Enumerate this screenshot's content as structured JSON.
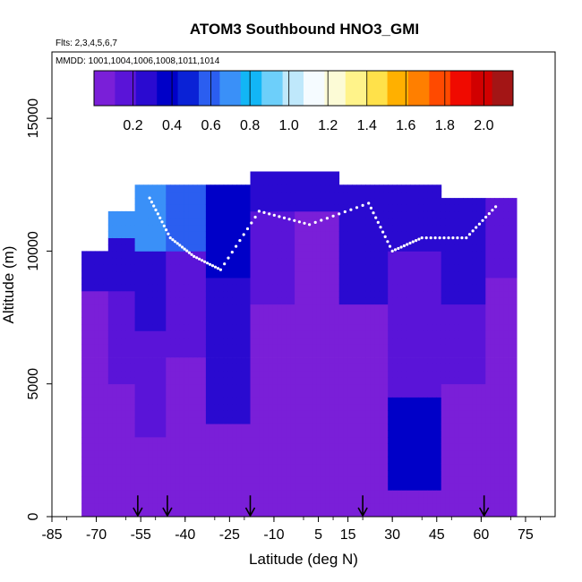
{
  "chart_data": {
    "type": "heatmap",
    "title": "ATOM3 Southbound HNO3_GMI",
    "flights_label": "Flts: 2,3,4,5,6,7",
    "mmdd_label": "MMDD: 1001,1004,1006,1008,1011,1014",
    "xlabel": "Latitude (deg N)",
    "ylabel": "Altitude (m)",
    "xlim": [
      -85,
      85
    ],
    "ylim": [
      0,
      17500
    ],
    "x_tick_values": [
      -85,
      -70,
      -55,
      -40,
      -25,
      -10,
      5,
      15,
      30,
      45,
      60,
      75
    ],
    "x_tick_labels": [
      "-85",
      "-70",
      "-55",
      "-40",
      "-25",
      "-10",
      "5",
      "15",
      "30",
      "45",
      "60",
      "75"
    ],
    "y_tick_values": [
      0,
      5000,
      10000,
      15000
    ],
    "y_tick_labels": [
      "0",
      "5000",
      "10000",
      "15000"
    ],
    "colorbar": {
      "range": [
        0,
        2.15
      ],
      "tick_values": [
        0.2,
        0.4,
        0.6,
        0.8,
        1.0,
        1.2,
        1.4,
        1.6,
        1.8,
        2.0
      ],
      "tick_labels": [
        "0.2",
        "0.4",
        "0.6",
        "0.8",
        "1.0",
        "1.2",
        "1.4",
        "1.6",
        "1.8",
        "2.0"
      ],
      "colors": [
        "#7a1fd8",
        "#5a14d8",
        "#2a0ad0",
        "#0000c8",
        "#0a22d6",
        "#2b5ef0",
        "#3a90f8",
        "#12b6f6",
        "#6dcffa",
        "#bfe8fb",
        "#f5fbff",
        "#fcfbd6",
        "#fff38a",
        "#ffe14a",
        "#ffb000",
        "#ff7f00",
        "#ff4a00",
        "#f00a00",
        "#d10000",
        "#a31515"
      ]
    },
    "column_profiles": [
      {
        "x": -70,
        "top": 10000,
        "regions": [
          {
            "y0": 0,
            "y1": 8600,
            "v": 0.06
          },
          {
            "y0": 8600,
            "y1": 10000,
            "v": 0.22
          }
        ]
      },
      {
        "x": -62,
        "top": 11500,
        "regions": [
          {
            "y0": 0,
            "y1": 5000,
            "v": 0.06
          },
          {
            "y0": 5000,
            "y1": 8500,
            "v": 0.14
          },
          {
            "y0": 8500,
            "y1": 10600,
            "v": 0.28
          },
          {
            "y0": 10600,
            "y1": 11500,
            "v": 0.75
          }
        ]
      },
      {
        "x": -52,
        "top": 12500,
        "regions": [
          {
            "y0": 0,
            "y1": 3000,
            "v": 0.06
          },
          {
            "y0": 3000,
            "y1": 7000,
            "v": 0.13
          },
          {
            "y0": 7000,
            "y1": 10000,
            "v": 0.25
          },
          {
            "y0": 10000,
            "y1": 12500,
            "v": 0.65
          }
        ]
      },
      {
        "x": -40,
        "top": 12500,
        "regions": [
          {
            "y0": 0,
            "y1": 6000,
            "v": 0.07
          },
          {
            "y0": 6000,
            "y1": 10000,
            "v": 0.2
          },
          {
            "y0": 10000,
            "y1": 12500,
            "v": 0.55
          }
        ]
      },
      {
        "x": -25,
        "top": 12500,
        "regions": [
          {
            "y0": 0,
            "y1": 3500,
            "v": 0.08
          },
          {
            "y0": 3500,
            "y1": 9000,
            "v": 0.32
          },
          {
            "y0": 9000,
            "y1": 12500,
            "v": 0.38
          }
        ]
      },
      {
        "x": -12,
        "top": 13000,
        "regions": [
          {
            "y0": 0,
            "y1": 8000,
            "v": 0.06
          },
          {
            "y0": 8000,
            "y1": 11500,
            "v": 0.16
          },
          {
            "y0": 11500,
            "y1": 13000,
            "v": 0.3
          }
        ]
      },
      {
        "x": 5,
        "top": 13000,
        "regions": [
          {
            "y0": 0,
            "y1": 9000,
            "v": 0.05
          },
          {
            "y0": 9000,
            "y1": 11500,
            "v": 0.1
          },
          {
            "y0": 11500,
            "y1": 13000,
            "v": 0.28
          }
        ]
      },
      {
        "x": 20,
        "top": 12500,
        "regions": [
          {
            "y0": 0,
            "y1": 8000,
            "v": 0.06
          },
          {
            "y0": 8000,
            "y1": 12500,
            "v": 0.22
          }
        ]
      },
      {
        "x": 38,
        "top": 12500,
        "regions": [
          {
            "y0": 0,
            "y1": 1000,
            "v": 0.1
          },
          {
            "y0": 1000,
            "y1": 4500,
            "v": 0.34
          },
          {
            "y0": 4500,
            "y1": 10000,
            "v": 0.12
          },
          {
            "y0": 10000,
            "y1": 12500,
            "v": 0.3
          }
        ]
      },
      {
        "x": 55,
        "top": 12000,
        "regions": [
          {
            "y0": 0,
            "y1": 5000,
            "v": 0.06
          },
          {
            "y0": 5000,
            "y1": 8000,
            "v": 0.2
          },
          {
            "y0": 8000,
            "y1": 12000,
            "v": 0.24
          }
        ]
      },
      {
        "x": 68,
        "top": 12000,
        "regions": [
          {
            "y0": 0,
            "y1": 9000,
            "v": 0.05
          },
          {
            "y0": 9000,
            "y1": 12000,
            "v": 0.18
          }
        ]
      }
    ],
    "flight_track_samples": [
      {
        "lat": -52,
        "alt": 12000
      },
      {
        "lat": -45,
        "alt": 10500
      },
      {
        "lat": -37,
        "alt": 9800
      },
      {
        "lat": -28,
        "alt": 9300
      },
      {
        "lat": -15,
        "alt": 11500
      },
      {
        "lat": 2,
        "alt": 11000
      },
      {
        "lat": 22,
        "alt": 11800
      },
      {
        "lat": 30,
        "alt": 10000
      },
      {
        "lat": 40,
        "alt": 10500
      },
      {
        "lat": 55,
        "alt": 10500
      },
      {
        "lat": 66,
        "alt": 11800
      }
    ],
    "arrow_latitudes": [
      -56,
      -46,
      -18,
      20,
      61
    ]
  }
}
